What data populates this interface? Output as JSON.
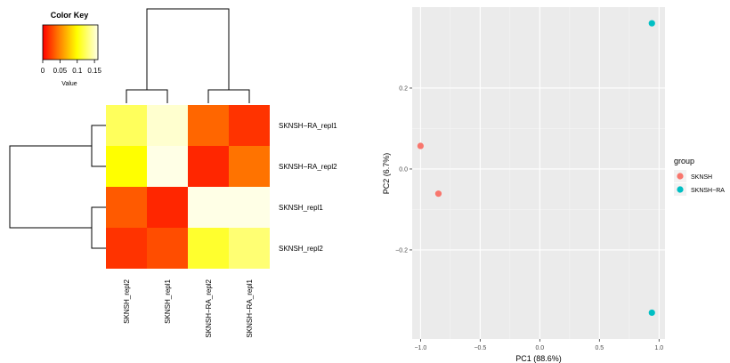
{
  "chart_data": [
    {
      "type": "heatmap",
      "title": "",
      "rows": [
        "SKNSH−RA_repl1",
        "SKNSH−RA_repl2",
        "SKNSH_repl1",
        "SKNSH_repl2"
      ],
      "columns": [
        "SKNSH_repl2",
        "SKNSH_repl1",
        "SKNSH−RA_repl2",
        "SKNSH−RA_repl1"
      ],
      "values": [
        [
          0.12,
          0.145,
          0.04,
          0.02
        ],
        [
          0.1,
          0.15,
          0.015,
          0.045
        ],
        [
          0.035,
          0.015,
          0.15,
          0.15
        ],
        [
          0.02,
          0.03,
          0.11,
          0.125
        ]
      ],
      "color_key": {
        "title": "Color Key",
        "label": "Value",
        "ticks": [
          "0",
          "0.05",
          "0.1",
          "0.15"
        ],
        "range": [
          0,
          0.16
        ],
        "colors": [
          "#ff0000",
          "#ff8000",
          "#ffff00",
          "#ffffe6"
        ]
      },
      "row_dendrogram": "((SKNSH−RA_repl1,SKNSH−RA_repl2),(SKNSH_repl1,SKNSH_repl2))",
      "column_dendrogram": "((SKNSH_repl2,SKNSH_repl1),(SKNSH−RA_repl2,SKNSH−RA_repl1))"
    },
    {
      "type": "scatter",
      "title": "",
      "xlabel": "PC1 (88.6%)",
      "ylabel": "PC2 (6.7%)",
      "xlim": [
        -1.07,
        1.05
      ],
      "ylim": [
        -0.42,
        0.4
      ],
      "xticks": [
        "−1.0",
        "−0.5",
        "0.0",
        "0.5",
        "1.0"
      ],
      "yticks": [
        "−0.2",
        "0.0",
        "0.2"
      ],
      "grid": true,
      "legend": {
        "title": "group",
        "position": "right"
      },
      "series": [
        {
          "name": "SKNSH",
          "color": "#f8766d",
          "points": [
            [
              -1.0,
              0.057
            ],
            [
              -0.85,
              -0.061
            ]
          ]
        },
        {
          "name": "SKNSH−RA",
          "color": "#00bfc4",
          "points": [
            [
              0.94,
              0.36
            ],
            [
              0.94,
              -0.355
            ]
          ]
        }
      ]
    }
  ]
}
